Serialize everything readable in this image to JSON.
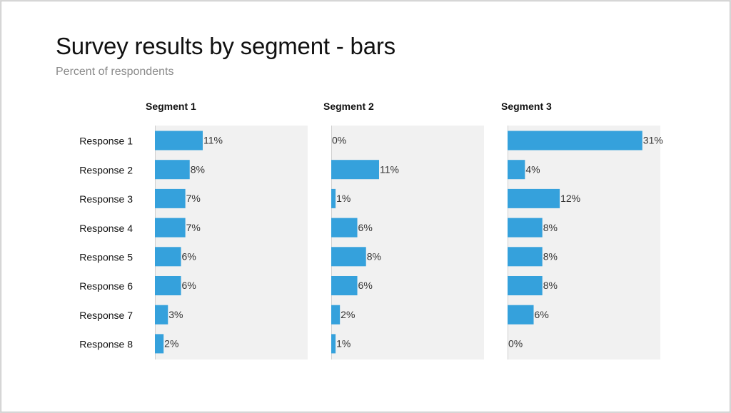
{
  "title": "Survey results by segment - bars",
  "subtitle": "Percent of respondents",
  "colors": {
    "bar": "#35a1dc",
    "panel": "#f1f1f1",
    "axis": "#cfcfcf"
  },
  "chart_data": [
    {
      "type": "bar",
      "orientation": "horizontal",
      "title": "Segment 1",
      "categories": [
        "Response 1",
        "Response 2",
        "Response 3",
        "Response 4",
        "Response 5",
        "Response 6",
        "Response 7",
        "Response 8"
      ],
      "values": [
        11,
        8,
        7,
        7,
        6,
        6,
        3,
        2
      ],
      "value_labels": [
        "11%",
        "8%",
        "7%",
        "7%",
        "6%",
        "6%",
        "3%",
        "2%"
      ],
      "xlim": [
        0,
        35
      ]
    },
    {
      "type": "bar",
      "orientation": "horizontal",
      "title": "Segment 2",
      "categories": [
        "Response 1",
        "Response 2",
        "Response 3",
        "Response 4",
        "Response 5",
        "Response 6",
        "Response 7",
        "Response 8"
      ],
      "values": [
        0,
        11,
        1,
        6,
        8,
        6,
        2,
        1
      ],
      "value_labels": [
        "0%",
        "11%",
        "1%",
        "6%",
        "8%",
        "6%",
        "2%",
        "1%"
      ],
      "xlim": [
        0,
        35
      ]
    },
    {
      "type": "bar",
      "orientation": "horizontal",
      "title": "Segment 3",
      "categories": [
        "Response 1",
        "Response 2",
        "Response 3",
        "Response 4",
        "Response 5",
        "Response 6",
        "Response 7",
        "Response 8"
      ],
      "values": [
        31,
        4,
        12,
        8,
        8,
        8,
        6,
        0
      ],
      "value_labels": [
        "31%",
        "4%",
        "12%",
        "8%",
        "8%",
        "8%",
        "6%",
        "0%"
      ],
      "xlim": [
        0,
        35
      ]
    }
  ]
}
